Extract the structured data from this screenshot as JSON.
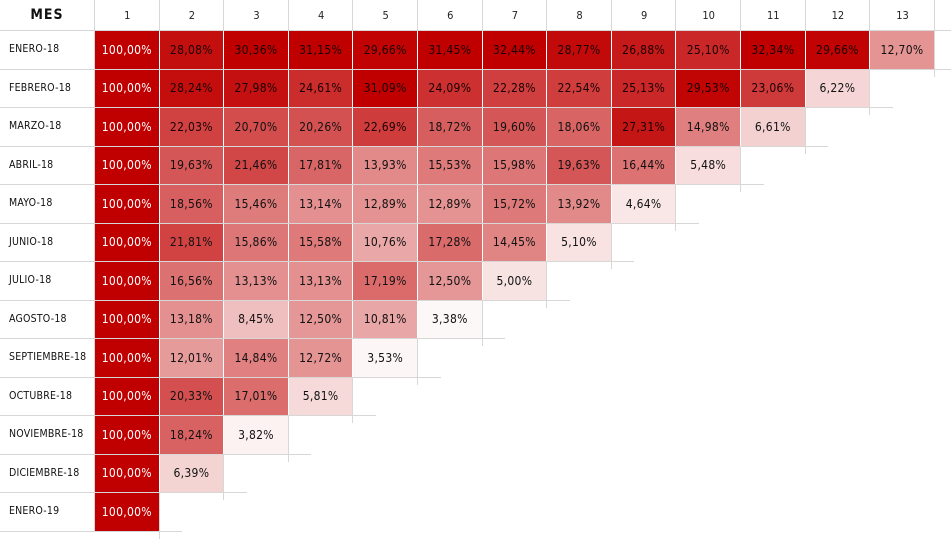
{
  "chart_data": {
    "type": "heatmap",
    "corner_label": "MES",
    "columns": [
      "1",
      "2",
      "3",
      "4",
      "5",
      "6",
      "7",
      "8",
      "9",
      "10",
      "11",
      "12",
      "13"
    ],
    "rows": [
      {
        "label": "ENERO-18",
        "values": [
          "100,00%",
          "28,08%",
          "30,36%",
          "31,15%",
          "29,66%",
          "31,45%",
          "32,44%",
          "28,77%",
          "26,88%",
          "25,10%",
          "32,34%",
          "29,66%",
          "12,70%"
        ]
      },
      {
        "label": "FEBRERO-18",
        "values": [
          "100,00%",
          "28,24%",
          "27,98%",
          "24,61%",
          "31,09%",
          "24,09%",
          "22,28%",
          "22,54%",
          "25,13%",
          "29,53%",
          "23,06%",
          "6,22%"
        ]
      },
      {
        "label": "MARZO-18",
        "values": [
          "100,00%",
          "22,03%",
          "20,70%",
          "20,26%",
          "22,69%",
          "18,72%",
          "19,60%",
          "18,06%",
          "27,31%",
          "14,98%",
          "6,61%"
        ]
      },
      {
        "label": "ABRIL-18",
        "values": [
          "100,00%",
          "19,63%",
          "21,46%",
          "17,81%",
          "13,93%",
          "15,53%",
          "15,98%",
          "19,63%",
          "16,44%",
          "5,48%"
        ]
      },
      {
        "label": "MAYO-18",
        "values": [
          "100,00%",
          "18,56%",
          "15,46%",
          "13,14%",
          "12,89%",
          "12,89%",
          "15,72%",
          "13,92%",
          "4,64%"
        ]
      },
      {
        "label": "JUNIO-18",
        "values": [
          "100,00%",
          "21,81%",
          "15,86%",
          "15,58%",
          "10,76%",
          "17,28%",
          "14,45%",
          "5,10%"
        ]
      },
      {
        "label": "JULIO-18",
        "values": [
          "100,00%",
          "16,56%",
          "13,13%",
          "13,13%",
          "17,19%",
          "12,50%",
          "5,00%"
        ]
      },
      {
        "label": "AGOSTO-18",
        "values": [
          "100,00%",
          "13,18%",
          "8,45%",
          "12,50%",
          "10,81%",
          "3,38%"
        ]
      },
      {
        "label": "SEPTIEMBRE-18",
        "values": [
          "100,00%",
          "12,01%",
          "14,84%",
          "12,72%",
          "3,53%"
        ]
      },
      {
        "label": "OCTUBRE-18",
        "values": [
          "100,00%",
          "20,33%",
          "17,01%",
          "5,81%"
        ]
      },
      {
        "label": "NOVIEMBRE-18",
        "values": [
          "100,00%",
          "18,24%",
          "3,82%"
        ]
      },
      {
        "label": "DICIEMBRE-18",
        "values": [
          "100,00%",
          "6,39%"
        ]
      },
      {
        "label": "ENERO-19",
        "values": [
          "100,00%"
        ]
      }
    ],
    "color_scale": {
      "low": "#ffffff",
      "high": "#c00000"
    }
  }
}
